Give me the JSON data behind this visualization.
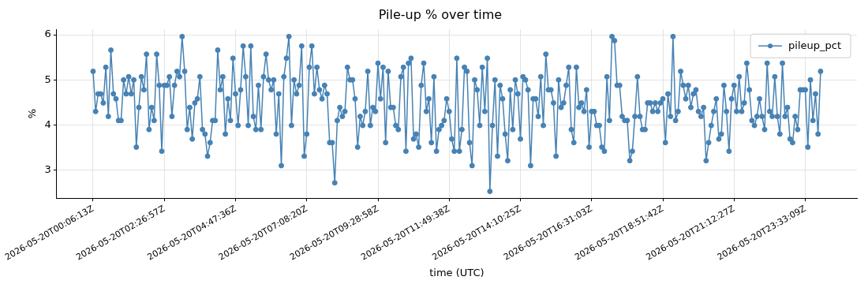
{
  "chart_data": {
    "type": "line",
    "title": "Pile-up % over time",
    "xlabel": "time (UTC)",
    "ylabel": "%",
    "categories": [
      "2026-05-20T00:06:13Z",
      null,
      null,
      null,
      null,
      null,
      null,
      null,
      null,
      null,
      null,
      null,
      null,
      null,
      null,
      null,
      null,
      null,
      null,
      null,
      null,
      null,
      null,
      null,
      null,
      null,
      null,
      null,
      "2026-05-20T02:26:57Z",
      null,
      null,
      null,
      null,
      null,
      null,
      null,
      null,
      null,
      null,
      null,
      null,
      null,
      null,
      null,
      null,
      null,
      null,
      null,
      null,
      null,
      null,
      null,
      null,
      null,
      null,
      null,
      "2026-05-20T04:47:36Z",
      null,
      null,
      null,
      null,
      null,
      null,
      null,
      null,
      null,
      null,
      null,
      null,
      null,
      null,
      null,
      null,
      null,
      null,
      null,
      null,
      null,
      null,
      null,
      null,
      null,
      null,
      null,
      "2026-05-20T07:08:20Z",
      null,
      null,
      null,
      null,
      null,
      null,
      null,
      null,
      null,
      null,
      null,
      null,
      null,
      null,
      null,
      null,
      null,
      null,
      null,
      null,
      null,
      null,
      null,
      null,
      null,
      null,
      null,
      "2026-05-20T09:28:58Z",
      null,
      null,
      null,
      null,
      null,
      null,
      null,
      null,
      null,
      null,
      null,
      null,
      null,
      null,
      null,
      null,
      null,
      null,
      null,
      null,
      null,
      null,
      null,
      null,
      null,
      null,
      null,
      "2026-05-20T11:49:38Z",
      null,
      null,
      null,
      null,
      null,
      null,
      null,
      null,
      null,
      null,
      null,
      null,
      null,
      null,
      null,
      null,
      null,
      null,
      null,
      null,
      null,
      null,
      null,
      null,
      null,
      null,
      null,
      "2026-05-20T14:10:25Z",
      null,
      null,
      null,
      null,
      null,
      null,
      null,
      null,
      null,
      null,
      null,
      null,
      null,
      null,
      null,
      null,
      null,
      null,
      null,
      null,
      null,
      null,
      null,
      null,
      null,
      null,
      null,
      "2026-05-20T16:31:03Z",
      null,
      null,
      null,
      null,
      null,
      null,
      null,
      null,
      null,
      null,
      null,
      null,
      null,
      null,
      null,
      null,
      null,
      null,
      null,
      null,
      null,
      null,
      null,
      null,
      null,
      null,
      null,
      "2026-05-20T18:51:42Z",
      null,
      null,
      null,
      null,
      null,
      null,
      null,
      null,
      null,
      null,
      null,
      null,
      null,
      null,
      null,
      null,
      null,
      null,
      null,
      null,
      null,
      null,
      null,
      null,
      null,
      null,
      null,
      "2026-05-20T21:12:27Z",
      null,
      null,
      null,
      null,
      null,
      null,
      null,
      null,
      null,
      null,
      null,
      null,
      null,
      null,
      null,
      null,
      null,
      null,
      null,
      null,
      null,
      null,
      null,
      null,
      null,
      null,
      null,
      "2026-05-20T23:33:09Z",
      null,
      null,
      null,
      null,
      null,
      null
    ],
    "series": [
      {
        "name": "pileup_pct",
        "color": "#4682b4",
        "values": [
          5.19,
          4.3,
          4.69,
          4.69,
          4.49,
          5.28,
          4.19,
          5.66,
          4.69,
          4.58,
          4.1,
          4.1,
          5.0,
          4.69,
          5.07,
          4.69,
          5.0,
          3.51,
          4.39,
          5.07,
          4.78,
          5.57,
          3.9,
          4.39,
          4.1,
          5.57,
          4.88,
          3.42,
          4.88,
          4.88,
          5.07,
          4.19,
          4.88,
          5.19,
          5.07,
          5.96,
          5.19,
          3.9,
          4.39,
          3.69,
          4.49,
          4.58,
          5.07,
          3.9,
          3.8,
          3.31,
          3.61,
          4.1,
          4.1,
          5.66,
          4.78,
          5.07,
          3.8,
          4.58,
          4.1,
          5.48,
          4.69,
          3.99,
          4.78,
          5.75,
          5.07,
          3.99,
          5.75,
          4.19,
          3.9,
          4.88,
          3.9,
          5.07,
          5.57,
          5.0,
          4.78,
          5.0,
          3.8,
          4.69,
          3.1,
          5.07,
          5.48,
          5.96,
          3.99,
          5.0,
          4.69,
          4.88,
          5.75,
          3.31,
          3.8,
          5.28,
          5.75,
          4.69,
          5.28,
          4.78,
          4.58,
          4.88,
          4.69,
          3.61,
          3.61,
          2.72,
          4.1,
          4.39,
          4.19,
          4.3,
          5.28,
          5.0,
          5.0,
          4.58,
          3.51,
          4.19,
          3.99,
          4.3,
          5.19,
          3.99,
          4.39,
          4.3,
          5.37,
          4.58,
          5.28,
          3.61,
          5.19,
          4.39,
          4.39,
          3.99,
          3.9,
          5.07,
          5.28,
          3.42,
          5.37,
          5.48,
          3.69,
          3.8,
          3.51,
          4.88,
          5.37,
          4.3,
          4.58,
          3.61,
          5.07,
          3.42,
          3.9,
          3.99,
          4.1,
          4.58,
          4.3,
          3.69,
          3.42,
          5.48,
          3.42,
          3.9,
          5.28,
          5.19,
          3.61,
          3.1,
          5.0,
          4.78,
          3.99,
          5.28,
          4.3,
          5.48,
          2.53,
          3.99,
          5.0,
          3.31,
          4.88,
          4.58,
          3.8,
          3.21,
          4.78,
          3.9,
          5.0,
          4.69,
          3.69,
          5.07,
          5.0,
          4.78,
          3.1,
          4.58,
          4.58,
          4.19,
          5.07,
          3.99,
          5.57,
          4.78,
          4.78,
          4.49,
          3.31,
          5.0,
          4.39,
          4.49,
          4.88,
          5.28,
          3.9,
          3.61,
          5.28,
          4.39,
          4.49,
          4.3,
          4.78,
          3.51,
          4.3,
          4.3,
          3.99,
          3.99,
          3.51,
          3.42,
          5.07,
          4.1,
          5.96,
          5.87,
          4.88,
          4.88,
          4.19,
          4.1,
          4.1,
          3.21,
          3.42,
          4.19,
          5.07,
          4.19,
          3.9,
          3.9,
          4.49,
          4.49,
          4.3,
          4.49,
          4.3,
          4.49,
          4.58,
          3.61,
          4.69,
          4.19,
          5.96,
          4.1,
          4.3,
          5.19,
          4.88,
          4.58,
          4.88,
          4.39,
          4.69,
          4.78,
          4.3,
          4.19,
          4.39,
          3.21,
          3.61,
          3.99,
          4.3,
          4.58,
          3.69,
          3.8,
          4.88,
          4.3,
          3.42,
          4.58,
          4.88,
          4.3,
          5.07,
          4.3,
          4.49,
          5.37,
          4.78,
          4.1,
          3.99,
          4.19,
          4.58,
          4.19,
          3.9,
          5.37,
          4.3,
          4.19,
          5.07,
          4.19,
          3.8,
          5.37,
          4.19,
          4.39,
          3.69,
          3.61,
          4.19,
          3.9,
          4.78,
          4.78,
          4.78,
          3.51,
          5.0,
          4.1,
          4.69,
          3.8,
          5.19
        ]
      }
    ],
    "ylim": [
      2.38,
      6.12
    ],
    "yticks": [
      3,
      4,
      5,
      6
    ],
    "grid": true,
    "legend": "top right",
    "marker": "circle",
    "line_style": "solid"
  }
}
